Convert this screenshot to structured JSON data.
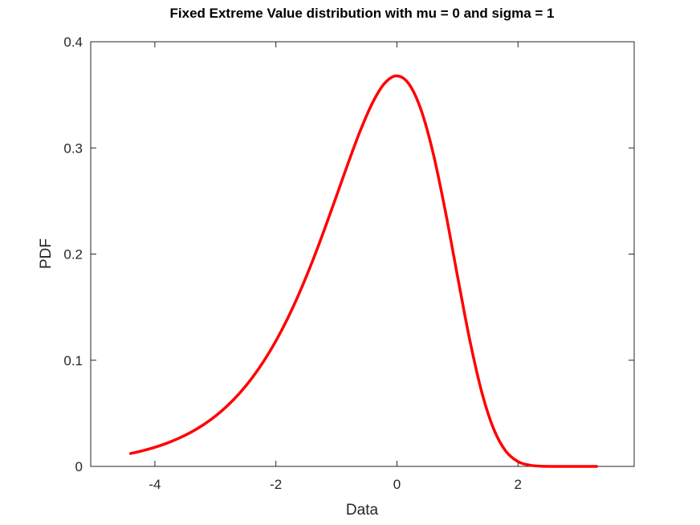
{
  "chart_data": {
    "type": "line",
    "title": "Fixed Extreme Value distribution with mu = 0 and sigma = 1",
    "xlabel": "Data",
    "ylabel": "PDF",
    "xlim": [
      -5.06,
      3.92
    ],
    "ylim": [
      0,
      0.4
    ],
    "xticks": [
      -4,
      -2,
      0,
      2
    ],
    "xtick_labels": [
      "-4",
      "-2",
      "0",
      "2"
    ],
    "yticks": [
      0,
      0.1,
      0.2,
      0.3,
      0.4
    ],
    "ytick_labels": [
      "0",
      "0.1",
      "0.2",
      "0.3",
      "0.4"
    ],
    "grid": false,
    "series": [
      {
        "name": "PDF",
        "color": "#ff0000",
        "x": [
          -4.4,
          -4.2,
          -4.0,
          -3.8,
          -3.6,
          -3.4,
          -3.2,
          -3.0,
          -2.8,
          -2.6,
          -2.4,
          -2.2,
          -2.0,
          -1.8,
          -1.6,
          -1.4,
          -1.2,
          -1.0,
          -0.8,
          -0.6,
          -0.4,
          -0.2,
          0,
          0.2,
          0.4,
          0.6,
          0.8,
          1.0,
          1.2,
          1.4,
          1.6,
          1.8,
          2.0,
          2.2,
          2.4,
          2.6,
          2.8,
          3.0,
          3.3
        ],
        "y": [
          0.01212,
          0.01477,
          0.01799,
          0.02188,
          0.0266,
          0.03228,
          0.03914,
          0.04736,
          0.05722,
          0.06894,
          0.08284,
          0.09918,
          0.1182,
          0.1401,
          0.165,
          0.1927,
          0.2229,
          0.2546,
          0.2867,
          0.317,
          0.3429,
          0.3611,
          0.3679,
          0.3601,
          0.3356,
          0.2946,
          0.2404,
          0.1794,
          0.12,
          0.0703,
          0.035,
          0.01427,
          0.00457,
          0.00109,
          0.00018,
          2e-05,
          0,
          0,
          0
        ]
      }
    ]
  }
}
